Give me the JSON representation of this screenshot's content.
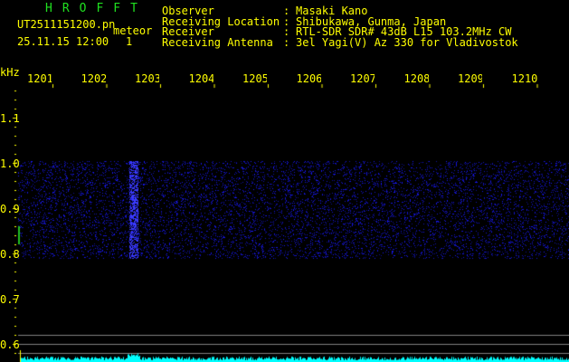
{
  "header": {
    "app": "HROFFT",
    "filename": "UT2511151200.pn",
    "meteor_label": "meteor",
    "datetime": "25.11.15 12:00",
    "meteor_count": "1",
    "fields": [
      {
        "label": "Observer",
        "value": "Masaki Kano"
      },
      {
        "label": "Receiving Location",
        "value": "Shibukawa, Gunma, Japan"
      },
      {
        "label": "Receiver",
        "value": "RTL-SDR SDR# 43dB L15 103.2MHz CW"
      },
      {
        "label": "Receiving Antenna",
        "value": "3el Yagi(V) Az 330 for Vladivostok"
      }
    ]
  },
  "axis": {
    "unit": "kHz",
    "x_ticks": [
      "1201",
      "1202",
      "1203",
      "1204",
      "1205",
      "1206",
      "1207",
      "1208",
      "1209",
      "1210"
    ],
    "y_ticks": [
      "1.1",
      "1.0",
      "0.9",
      "0.8",
      "0.7",
      "0.6"
    ]
  },
  "colors": {
    "text": "#ffff00",
    "title": "#20e020",
    "signal": "#2020ff",
    "spectrum": "#00ffff",
    "lines": "#808080"
  }
}
